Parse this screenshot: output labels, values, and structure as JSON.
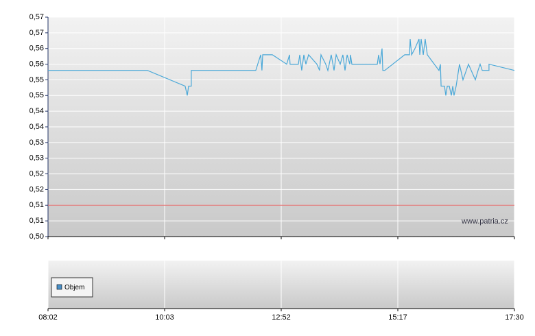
{
  "chart_data": [
    {
      "type": "line",
      "annotation": "www.patria.cz",
      "xlim": [
        0,
        4
      ],
      "xticks": [
        {
          "value": 0,
          "label": "08:02"
        },
        {
          "value": 1,
          "label": "10:03"
        },
        {
          "value": 2,
          "label": "12:52"
        },
        {
          "value": 3,
          "label": "15:17"
        },
        {
          "value": 4,
          "label": "17:30"
        }
      ],
      "ylim": [
        0.5,
        0.57
      ],
      "yticks": [
        {
          "value": 0.5,
          "label": "0,50"
        },
        {
          "value": 0.505,
          "label": "0,51"
        },
        {
          "value": 0.51,
          "label": "0,51"
        },
        {
          "value": 0.515,
          "label": "0,52"
        },
        {
          "value": 0.52,
          "label": "0,52"
        },
        {
          "value": 0.525,
          "label": "0,53"
        },
        {
          "value": 0.53,
          "label": "0,53"
        },
        {
          "value": 0.535,
          "label": "0,54"
        },
        {
          "value": 0.54,
          "label": "0,54"
        },
        {
          "value": 0.545,
          "label": "0,55"
        },
        {
          "value": 0.55,
          "label": "0,55"
        },
        {
          "value": 0.555,
          "label": "0,56"
        },
        {
          "value": 0.56,
          "label": "0,56"
        },
        {
          "value": 0.565,
          "label": "0,57"
        },
        {
          "value": 0.57,
          "label": "0,57"
        }
      ],
      "grid": true,
      "reference_line": {
        "value": 0.51,
        "color": "#e06060"
      },
      "x": [
        0,
        0.853,
        1.176,
        1.194,
        1.206,
        1.229,
        1.229,
        1.782,
        1.824,
        1.835,
        1.841,
        1.924,
        2.047,
        2.071,
        2.076,
        2.147,
        2.159,
        2.176,
        2.194,
        2.212,
        2.235,
        2.306,
        2.329,
        2.341,
        2.382,
        2.4,
        2.429,
        2.453,
        2.471,
        2.506,
        2.529,
        2.547,
        2.565,
        2.588,
        2.594,
        2.606,
        2.824,
        2.835,
        2.847,
        2.865,
        2.871,
        2.888,
        3.059,
        3.1,
        3.106,
        3.118,
        3.147,
        3.182,
        3.188,
        3.2,
        3.218,
        3.235,
        3.253,
        3.353,
        3.365,
        3.371,
        3.4,
        3.412,
        3.424,
        3.441,
        3.459,
        3.471,
        3.482,
        3.5,
        3.529,
        3.559,
        3.606,
        3.665,
        3.688,
        3.706,
        3.724,
        3.782,
        3.782,
        4
      ],
      "series": [
        {
          "color": "#4aa8d8",
          "values": [
            0.553,
            0.553,
            0.548,
            0.545,
            0.548,
            0.548,
            0.553,
            0.553,
            0.558,
            0.553,
            0.558,
            0.558,
            0.555,
            0.558,
            0.555,
            0.555,
            0.558,
            0.553,
            0.558,
            0.555,
            0.558,
            0.555,
            0.553,
            0.558,
            0.555,
            0.553,
            0.558,
            0.553,
            0.558,
            0.555,
            0.558,
            0.553,
            0.558,
            0.555,
            0.558,
            0.555,
            0.555,
            0.558,
            0.555,
            0.56,
            0.553,
            0.553,
            0.558,
            0.558,
            0.563,
            0.558,
            0.56,
            0.563,
            0.558,
            0.563,
            0.558,
            0.563,
            0.558,
            0.553,
            0.555,
            0.548,
            0.548,
            0.545,
            0.548,
            0.548,
            0.545,
            0.548,
            0.545,
            0.548,
            0.555,
            0.55,
            0.555,
            0.55,
            0.553,
            0.555,
            0.553,
            0.553,
            0.555,
            0.553
          ]
        }
      ]
    },
    {
      "type": "bar",
      "series": [
        {
          "name": "Objem",
          "color": "#4a90c8"
        }
      ]
    }
  ]
}
